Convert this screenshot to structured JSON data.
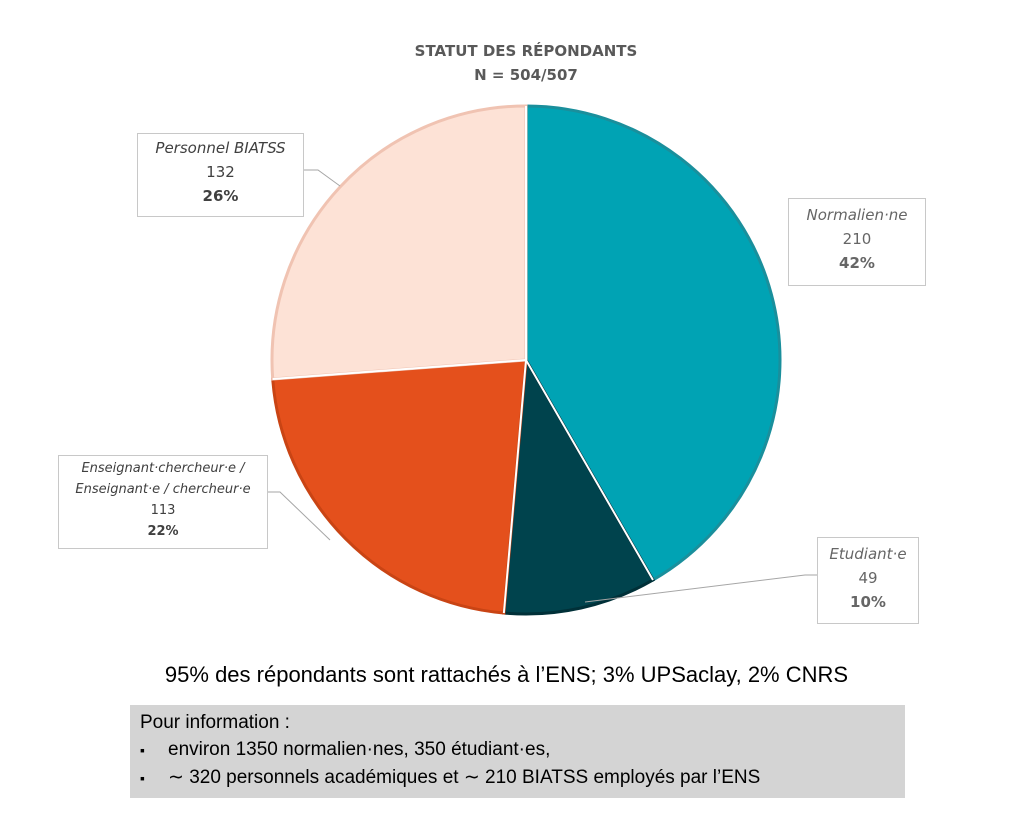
{
  "chart_data": {
    "type": "pie",
    "title": "STATUT DES RÉPONDANTS",
    "subtitle": "N = 504/507",
    "start": "top",
    "direction": "clockwise",
    "slices": [
      {
        "label": "Normalien·ne",
        "value": 210,
        "percent": "42%",
        "color": "#00A3B4"
      },
      {
        "label": "Etudiant·e",
        "value": 49,
        "percent": "10%",
        "color": "#00434D"
      },
      {
        "label": "Enseignant·chercheur·e  / Enseignant·e / chercheur·e",
        "value": 113,
        "percent": "22%",
        "color": "#E4501C"
      },
      {
        "label": "Personnel BIATSS",
        "value": 132,
        "percent": "26%",
        "color": "#FDE2D6"
      }
    ]
  },
  "summary": "95% des répondants sont rattachés à l’ENS; 3% UPSaclay, 2% CNRS",
  "info": {
    "heading": "Pour information :",
    "items": [
      "environ 1350 normalien·nes, 350 étudiant·es,",
      "∼ 320 personnels académiques et ∼ 210 BIATSS employés par l’ENS"
    ]
  }
}
